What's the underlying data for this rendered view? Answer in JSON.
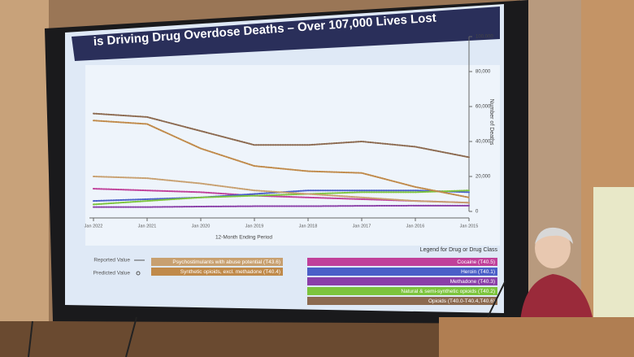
{
  "chart_data": {
    "type": "line",
    "title": "is Driving Drug Overdose Deaths – Over 107,000 Lives Lost",
    "y_label": "Number of Deaths",
    "x_label": "12-Month Ending Period",
    "legend_title": "Legend for Drug or Drug Class",
    "marker_labels": [
      "Reported Value",
      "Predicted Value"
    ],
    "categories": [
      "Jan 2022",
      "Jan 2021",
      "Jan 2020",
      "Jan 2019",
      "Jan 2018",
      "Jan 2017",
      "Jan 2016",
      "Jan 2015"
    ],
    "ylim": [
      0,
      100000
    ],
    "yticks": [
      0,
      {
        "value": 20000,
        "label": "20,000"
      },
      {
        "value": 40000,
        "label": "40,000"
      },
      {
        "value": 60000,
        "label": "60,000"
      },
      {
        "value": 80000,
        "label": "80,000"
      },
      {
        "value": 100000,
        "label": "100,000"
      }
    ],
    "series": [
      {
        "name": "Cocaine (T40.5)",
        "color": "#c0409a",
        "values": [
          13000,
          12000,
          11000,
          9000,
          8000,
          7000,
          6000,
          5000
        ]
      },
      {
        "name": "Heroin (T40.1)",
        "color": "#4a5fc8",
        "values": [
          6000,
          7000,
          8000,
          10000,
          12000,
          12000,
          12000,
          11000
        ]
      },
      {
        "name": "Methadone (T40.3)",
        "color": "#8a3fa8",
        "values": [
          2500,
          2500,
          2800,
          3000,
          3000,
          3200,
          3300,
          3300
        ]
      },
      {
        "name": "Natural & semi-synthetic opioids (T40.2)",
        "color": "#7cc43c",
        "values": [
          4000,
          6000,
          8000,
          9000,
          10000,
          11000,
          11000,
          12000
        ]
      },
      {
        "name": "Opioids (T40.0-T40.4,T40.6)",
        "color": "#8c6a50",
        "values": [
          56000,
          54000,
          46000,
          38000,
          38000,
          40000,
          37000,
          31000
        ]
      },
      {
        "name": "Psychostimulants with abuse potential (T43.6)",
        "color": "#c8a070",
        "values": [
          20000,
          19000,
          16000,
          12000,
          10000,
          8000,
          6000,
          5000
        ]
      },
      {
        "name": "Synthetic opioids, excl. methadone (T40.4)",
        "color": "#c08a4a",
        "values": [
          52000,
          50000,
          36000,
          26000,
          23000,
          22000,
          14000,
          8000
        ]
      }
    ]
  }
}
